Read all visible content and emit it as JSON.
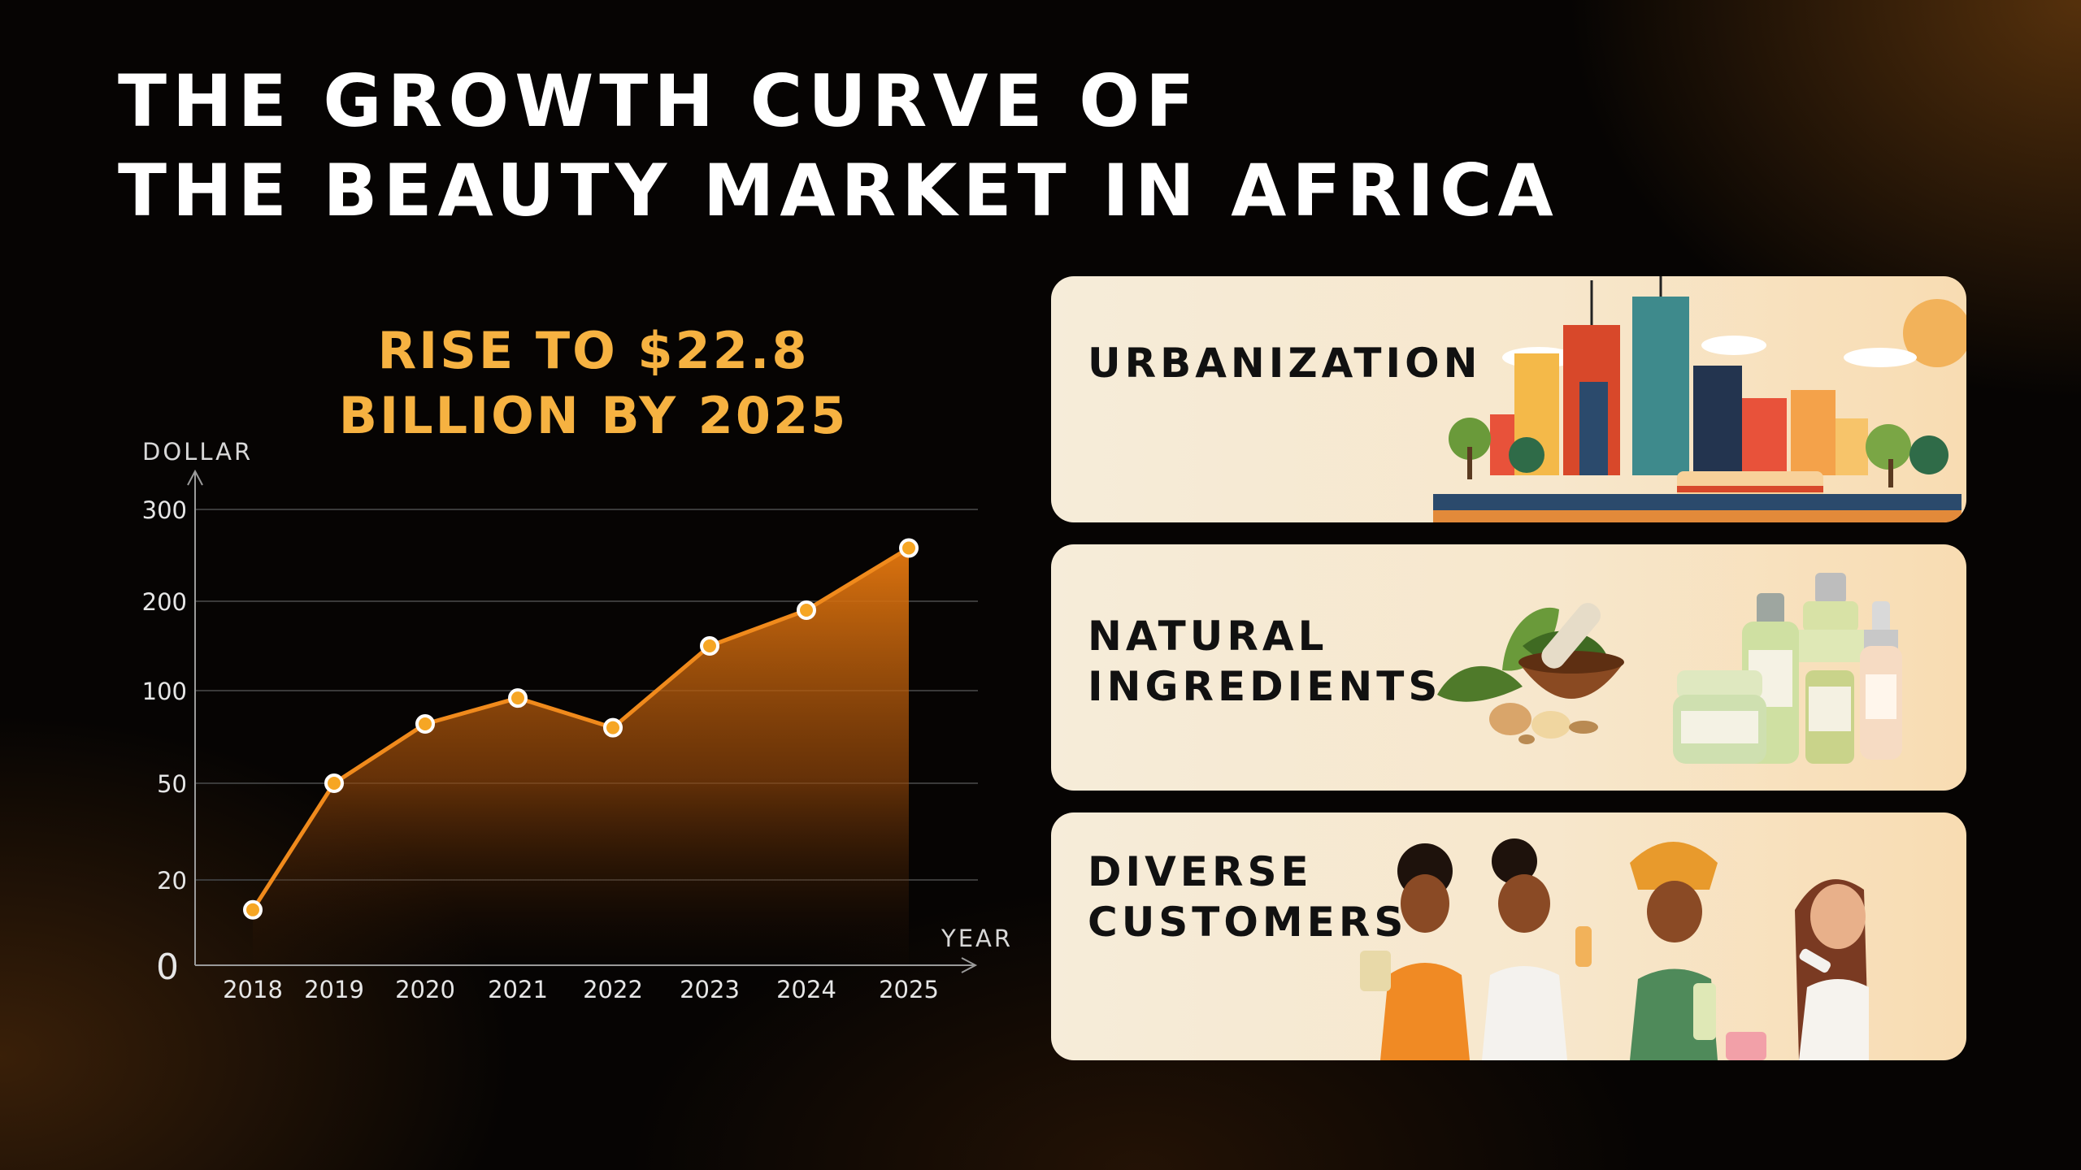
{
  "title": {
    "line1": "THE GROWTH CURVE OF",
    "line2": "THE BEAUTY MARKET IN AFRICA"
  },
  "subtitle": {
    "line1": "RISE TO $22.8",
    "line2": "BILLION BY 2025"
  },
  "chart_data": {
    "type": "area",
    "x": [
      "2018",
      "2019",
      "2020",
      "2021",
      "2022",
      "2023",
      "2024",
      "2025"
    ],
    "values": [
      13,
      50,
      82,
      96,
      80,
      150,
      190,
      258
    ],
    "y_ticks": [
      "0",
      "20",
      "50",
      "100",
      "200",
      "300"
    ],
    "ylabel": "DOLLAR",
    "xlabel": "YEAR",
    "grid": true,
    "line_color": "#f08a1c",
    "fill_color_top": "#e3770f",
    "marker_fill": "#f6a624"
  },
  "cards": [
    {
      "label_lines": [
        "URBANIZATION"
      ],
      "illustration": "city-skyline-icon"
    },
    {
      "label_lines": [
        "NATURAL",
        "INGREDIENTS"
      ],
      "illustration": "ingredients-cosmetics-icon"
    },
    {
      "label_lines": [
        "DIVERSE",
        "CUSTOMERS"
      ],
      "illustration": "customers-icon"
    }
  ],
  "colors": {
    "card_bg": "#f6ecd9",
    "accent": "#f6b241",
    "text_dark": "#111111"
  }
}
